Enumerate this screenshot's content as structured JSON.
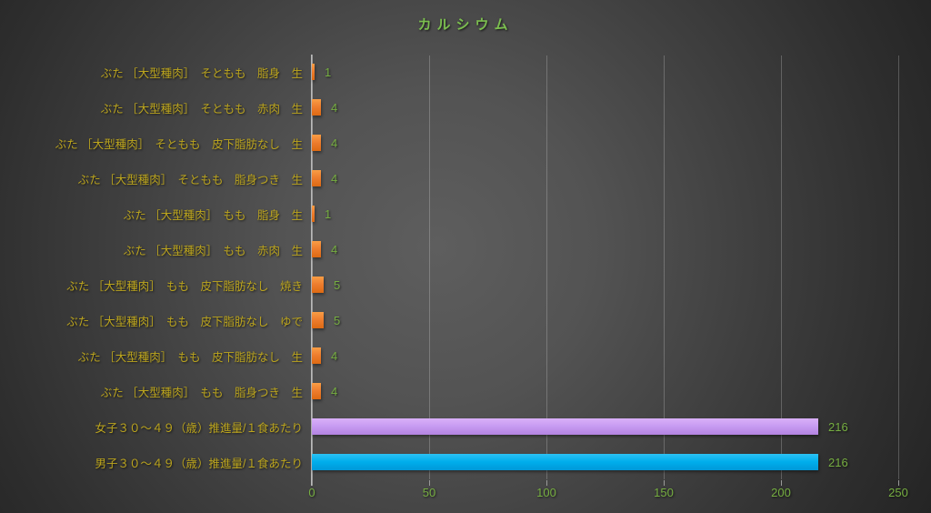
{
  "chart_data": {
    "type": "bar",
    "orientation": "horizontal",
    "title": "カルシウム",
    "xlabel": "",
    "ylabel": "",
    "xlim": [
      0,
      250
    ],
    "x_ticks": [
      0,
      50,
      100,
      150,
      200,
      250
    ],
    "grid": true,
    "legend": false,
    "rows": [
      {
        "label": "ぶた ［大型種肉］　そともも　脂身　生",
        "value": 1,
        "series": "food"
      },
      {
        "label": "ぶた ［大型種肉］　そともも　赤肉　生",
        "value": 4,
        "series": "food"
      },
      {
        "label": "ぶた ［大型種肉］　そともも　皮下脂肪なし　生",
        "value": 4,
        "series": "food"
      },
      {
        "label": "ぶた ［大型種肉］　そともも　脂身つき　生",
        "value": 4,
        "series": "food"
      },
      {
        "label": "ぶた ［大型種肉］　もも　脂身　生",
        "value": 1,
        "series": "food"
      },
      {
        "label": "ぶた ［大型種肉］　もも　赤肉　生",
        "value": 4,
        "series": "food"
      },
      {
        "label": "ぶた ［大型種肉］　もも　皮下脂肪なし　焼き",
        "value": 5,
        "series": "food"
      },
      {
        "label": "ぶた ［大型種肉］　もも　皮下脂肪なし　ゆで",
        "value": 5,
        "series": "food"
      },
      {
        "label": "ぶた ［大型種肉］　もも　皮下脂肪なし　生",
        "value": 4,
        "series": "food"
      },
      {
        "label": "ぶた ［大型種肉］　もも　脂身つき　生",
        "value": 4,
        "series": "food"
      },
      {
        "label": "女子３０～４９（歳）推進量/１食あたり",
        "value": 216,
        "series": "female_reference"
      },
      {
        "label": "男子３０～４９（歳）推進量/１食あたり",
        "value": 216,
        "series": "male_reference"
      }
    ]
  },
  "colors": {
    "series": {
      "food": "#ed7d31",
      "female_reference": "#c79bf2",
      "male_reference": "#00aeec"
    },
    "title_text": "#7bbe4f",
    "category_text": "#bca51e",
    "value_text": "#76ae41",
    "tick_text": "#76ae41",
    "axis_line": "#b0b0b0",
    "gridline": "rgba(255,255,255,0.22)",
    "background_center": "#5c5c5c",
    "background_edge": "#242424"
  }
}
